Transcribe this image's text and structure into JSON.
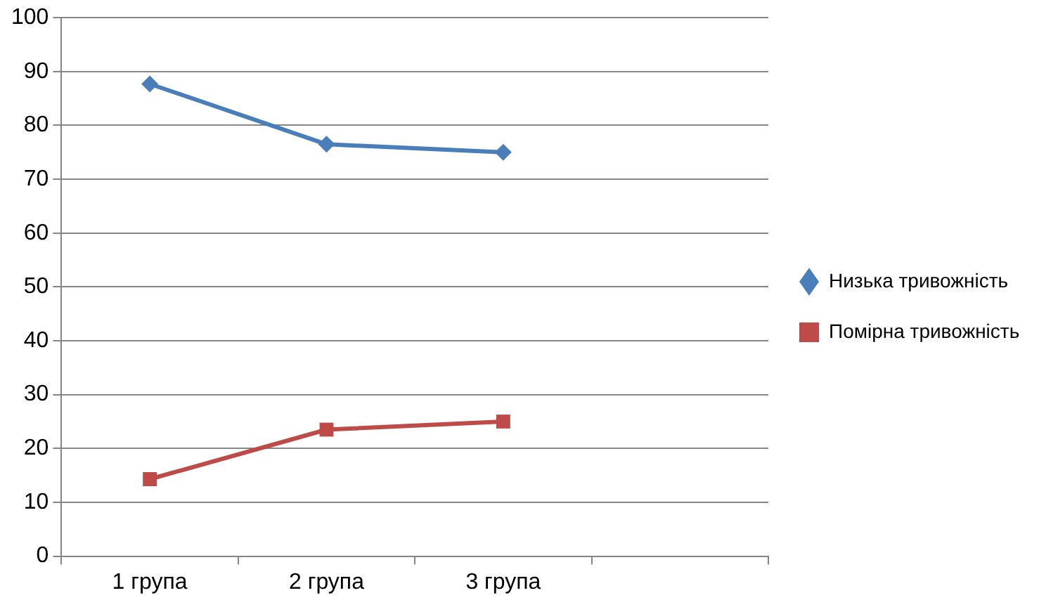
{
  "chart_data": {
    "type": "line",
    "categories": [
      "1 група",
      "2 група",
      "3 група",
      null
    ],
    "series": [
      {
        "name": "Низька тривожність",
        "color": "#4a7ebb",
        "values": [
          87.7,
          76.5,
          75,
          null
        ],
        "marker": "diamond"
      },
      {
        "name": "Помірна тривожність",
        "color": "#be4b48",
        "values": [
          14.3,
          23.5,
          25,
          null
        ],
        "marker": "square"
      }
    ],
    "ylim": [
      0,
      100
    ],
    "yticks": [
      0,
      10,
      20,
      30,
      40,
      50,
      60,
      70,
      80,
      90,
      100
    ],
    "grid": "y",
    "legend": "right",
    "line_style": "solid"
  }
}
